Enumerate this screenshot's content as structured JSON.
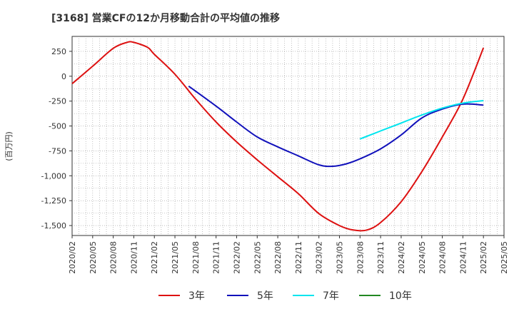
{
  "chart_data": {
    "type": "line",
    "title": "[3168]  営業CFの12か月移動合計の平均値の推移",
    "ylabel": "(百万円)",
    "xlabel": "",
    "ylim": [
      -1600,
      400
    ],
    "yticks": [
      250,
      0,
      -250,
      -500,
      -750,
      -1000,
      -1250,
      -1500
    ],
    "ytick_labels": [
      "250",
      "0",
      "-250",
      "-500",
      "-750",
      "-1,000",
      "-1,250",
      "-1,500"
    ],
    "x_start": "2020-02",
    "x_end": "2025-05",
    "xtick_labels": [
      "2020/02",
      "2020/05",
      "2020/08",
      "2020/11",
      "2021/02",
      "2021/05",
      "2021/08",
      "2021/11",
      "2022/02",
      "2022/05",
      "2022/08",
      "2022/11",
      "2023/02",
      "2023/05",
      "2023/08",
      "2023/11",
      "2024/02",
      "2024/05",
      "2024/08",
      "2024/11",
      "2025/02",
      "2025/05"
    ],
    "grid": true,
    "legend_position": "bottom",
    "series": [
      {
        "name": "3年",
        "color": "#dd1111",
        "points": [
          [
            "2020-02",
            -75
          ],
          [
            "2020-05",
            100
          ],
          [
            "2020-08",
            280
          ],
          [
            "2020-10",
            340
          ],
          [
            "2020-11",
            340
          ],
          [
            "2021-01",
            290
          ],
          [
            "2021-02",
            220
          ],
          [
            "2021-05",
            20
          ],
          [
            "2021-08",
            -230
          ],
          [
            "2021-11",
            -460
          ],
          [
            "2022-02",
            -660
          ],
          [
            "2022-05",
            -840
          ],
          [
            "2022-08",
            -1010
          ],
          [
            "2022-11",
            -1180
          ],
          [
            "2023-02",
            -1380
          ],
          [
            "2023-05",
            -1500
          ],
          [
            "2023-07",
            -1545
          ],
          [
            "2023-09",
            -1545
          ],
          [
            "2023-11",
            -1470
          ],
          [
            "2024-02",
            -1260
          ],
          [
            "2024-05",
            -960
          ],
          [
            "2024-08",
            -610
          ],
          [
            "2024-11",
            -230
          ],
          [
            "2025-02",
            285
          ]
        ]
      },
      {
        "name": "5年",
        "color": "#1111bb",
        "points": [
          [
            "2021-07",
            -100
          ],
          [
            "2021-11",
            -300
          ],
          [
            "2022-02",
            -460
          ],
          [
            "2022-05",
            -610
          ],
          [
            "2022-08",
            -710
          ],
          [
            "2022-11",
            -800
          ],
          [
            "2023-02",
            -890
          ],
          [
            "2023-04",
            -905
          ],
          [
            "2023-06",
            -880
          ],
          [
            "2023-08",
            -830
          ],
          [
            "2023-11",
            -730
          ],
          [
            "2024-02",
            -590
          ],
          [
            "2024-05",
            -420
          ],
          [
            "2024-08",
            -330
          ],
          [
            "2024-11",
            -280
          ],
          [
            "2025-02",
            -290
          ]
        ]
      },
      {
        "name": "7年",
        "color": "#00e5ee",
        "points": [
          [
            "2023-08",
            -630
          ],
          [
            "2023-11",
            -550
          ],
          [
            "2024-02",
            -470
          ],
          [
            "2024-05",
            -390
          ],
          [
            "2024-08",
            -320
          ],
          [
            "2024-11",
            -270
          ],
          [
            "2025-02",
            -245
          ]
        ]
      },
      {
        "name": "10年",
        "color": "#228822",
        "points": []
      }
    ]
  }
}
